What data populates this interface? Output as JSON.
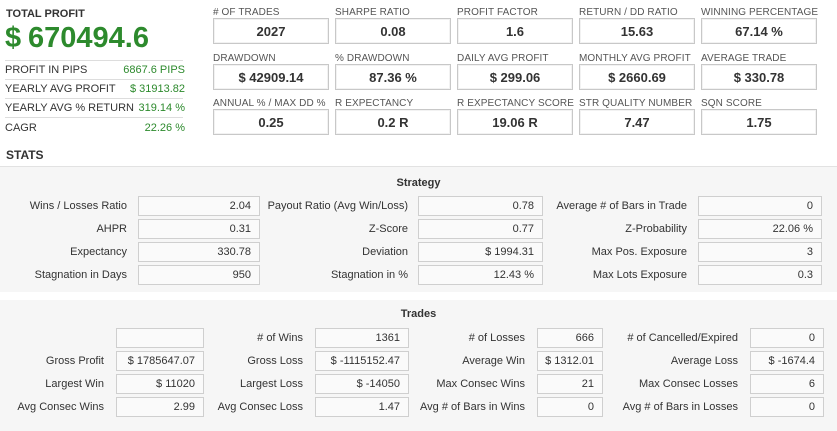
{
  "summary": {
    "total_label": "TOTAL PROFIT",
    "currency": "$",
    "total_value": "670494.6",
    "rows": [
      {
        "label": "PROFIT IN PIPS",
        "value": "6867.6 PIPS"
      },
      {
        "label": "YEARLY AVG PROFIT",
        "value": "$ 31913.82"
      },
      {
        "label": "YEARLY AVG % RETURN",
        "value": "319.14 %"
      },
      {
        "label": "CAGR",
        "value": "22.26 %"
      }
    ],
    "accent_color": "#2d8a2d"
  },
  "cards": [
    {
      "label": "# OF TRADES",
      "value": "2027"
    },
    {
      "label": "SHARPE RATIO",
      "value": "0.08"
    },
    {
      "label": "PROFIT FACTOR",
      "value": "1.6"
    },
    {
      "label": "RETURN / DD RATIO",
      "value": "15.63"
    },
    {
      "label": "WINNING PERCENTAGE",
      "value": "67.14 %"
    },
    {
      "label": "DRAWDOWN",
      "value": "$ 42909.14"
    },
    {
      "label": "% DRAWDOWN",
      "value": "87.36 %"
    },
    {
      "label": "DAILY AVG PROFIT",
      "value": "$ 299.06"
    },
    {
      "label": "MONTHLY AVG PROFIT",
      "value": "$ 2660.69"
    },
    {
      "label": "AVERAGE TRADE",
      "value": "$ 330.78"
    },
    {
      "label": "ANNUAL % / MAX DD %",
      "value": "0.25"
    },
    {
      "label": "R EXPECTANCY",
      "value": "0.2 R"
    },
    {
      "label": "R EXPECTANCY SCORE",
      "value": "19.06 R"
    },
    {
      "label": "STR QUALITY NUMBER",
      "value": "7.47"
    },
    {
      "label": "SQN SCORE",
      "value": "1.75"
    }
  ],
  "stats_title": "STATS",
  "strategy": {
    "title": "Strategy",
    "rows": [
      [
        {
          "label": "Wins / Losses Ratio",
          "value": "2.04"
        },
        {
          "label": "Payout Ratio (Avg Win/Loss)",
          "value": "0.78"
        },
        {
          "label": "Average # of Bars in Trade",
          "value": "0"
        }
      ],
      [
        {
          "label": "AHPR",
          "value": "0.31"
        },
        {
          "label": "Z-Score",
          "value": "0.77"
        },
        {
          "label": "Z-Probability",
          "value": "22.06 %"
        }
      ],
      [
        {
          "label": "Expectancy",
          "value": "330.78"
        },
        {
          "label": "Deviation",
          "value": "$ 1994.31"
        },
        {
          "label": "Max Pos. Exposure",
          "value": "3"
        }
      ],
      [
        {
          "label": "Stagnation in Days",
          "value": "950"
        },
        {
          "label": "Stagnation in %",
          "value": "12.43 %"
        },
        {
          "label": "Max Lots Exposure",
          "value": "0.3"
        }
      ]
    ]
  },
  "trades": {
    "title": "Trades",
    "rows": [
      [
        {
          "label": "",
          "value": ""
        },
        {
          "label": "# of Wins",
          "value": "1361"
        },
        {
          "label": "# of Losses",
          "value": "666"
        },
        {
          "label": "# of Cancelled/Expired",
          "value": "0"
        }
      ],
      [
        {
          "label": "Gross Profit",
          "value": "$ 1785647.07"
        },
        {
          "label": "Gross Loss",
          "value": "$ -1115152.47"
        },
        {
          "label": "Average Win",
          "value": "$ 1312.01"
        },
        {
          "label": "Average Loss",
          "value": "$ -1674.4"
        }
      ],
      [
        {
          "label": "Largest Win",
          "value": "$ 11020"
        },
        {
          "label": "Largest Loss",
          "value": "$ -14050"
        },
        {
          "label": "Max Consec Wins",
          "value": "21"
        },
        {
          "label": "Max Consec Losses",
          "value": "6"
        }
      ],
      [
        {
          "label": "Avg Consec Wins",
          "value": "2.99"
        },
        {
          "label": "Avg Consec Loss",
          "value": "1.47"
        },
        {
          "label": "Avg # of Bars in Wins",
          "value": "0"
        },
        {
          "label": "Avg # of Bars in Losses",
          "value": "0"
        }
      ]
    ]
  }
}
